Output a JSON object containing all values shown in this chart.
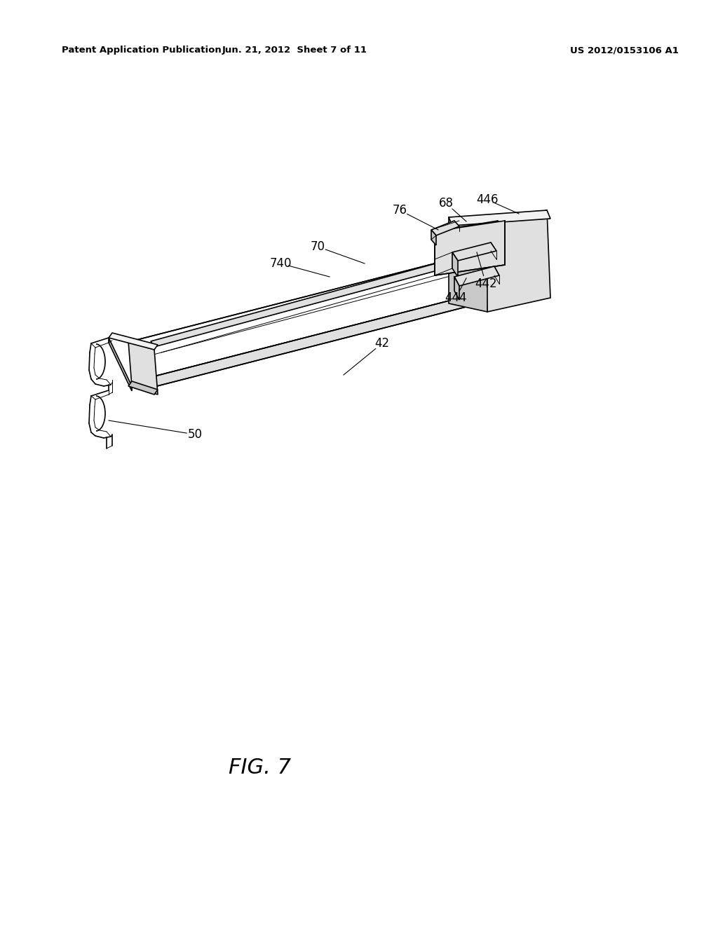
{
  "bg_color": "#ffffff",
  "header_left": "Patent Application Publication",
  "header_center": "Jun. 21, 2012  Sheet 7 of 11",
  "header_right": "US 2012/0153106 A1",
  "figure_label": "FIG. 7",
  "lw_main": 1.2,
  "lw_thin": 0.7,
  "lw_label": 0.8,
  "label_fontsize": 12,
  "header_fontsize": 9.5,
  "fig_fontsize": 22,
  "face_white": "#ffffff",
  "face_light": "#f2f2f2",
  "face_mid": "#e0e0e0",
  "face_dark": "#c8c8c8",
  "edge_color": "#000000"
}
